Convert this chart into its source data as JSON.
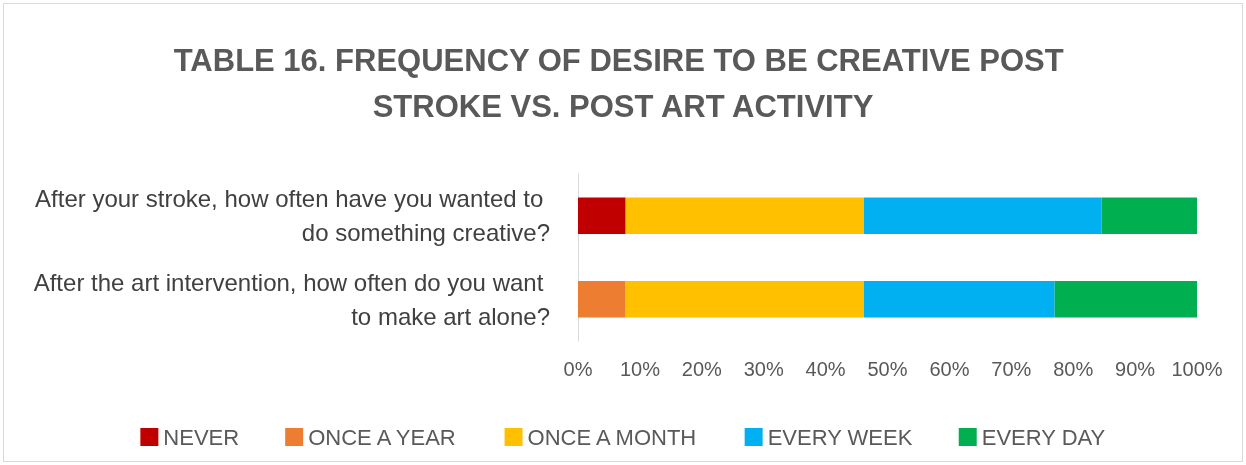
{
  "chart_data": {
    "type": "bar",
    "orientation": "horizontal",
    "stacked": true,
    "title": "TABLE 16. FREQUENCY OF DESIRE TO BE CREATIVE POST STROKE VS. POST ART ACTIVITY",
    "categories": [
      "After your stroke, how often have you wanted to do something creative?",
      "After the art intervention, how often do you want to make art alone?"
    ],
    "series": [
      {
        "name": "NEVER",
        "color": "#c00000",
        "values": [
          7.7,
          null
        ]
      },
      {
        "name": "ONCE A YEAR",
        "color": "#ed7d31",
        "values": [
          null,
          7.7
        ]
      },
      {
        "name": "ONCE A MONTH",
        "color": "#ffc000",
        "values": [
          38.5,
          38.5
        ]
      },
      {
        "name": "EVERY WEEK",
        "color": "#00b0f0",
        "values": [
          38.4,
          30.8
        ]
      },
      {
        "name": "EVERY DAY",
        "color": "#00b050",
        "values": [
          15.4,
          23
        ]
      }
    ],
    "xlim": [
      0,
      100
    ],
    "xticks": [
      {
        "value": 0,
        "label": "0%"
      },
      {
        "value": 10,
        "label": "10%"
      },
      {
        "value": 20,
        "label": "20%"
      },
      {
        "value": 30,
        "label": "30%"
      },
      {
        "value": 40,
        "label": "40%"
      },
      {
        "value": 50,
        "label": "50%"
      },
      {
        "value": 60,
        "label": "60%"
      },
      {
        "value": 70,
        "label": "70%"
      },
      {
        "value": 80,
        "label": "80%"
      },
      {
        "value": 90,
        "label": "90%"
      },
      {
        "value": 100,
        "label": "100%"
      }
    ],
    "grid": false,
    "legend": "bottom"
  }
}
